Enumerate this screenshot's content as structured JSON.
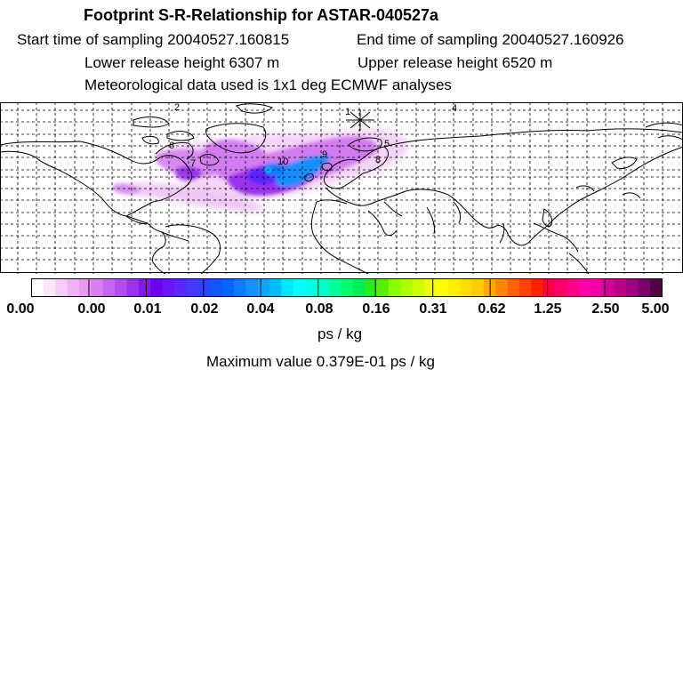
{
  "header": {
    "title": "Footprint S-R-Relationship for ASTAR-040527a",
    "start_time": "Start time of sampling 20040527.160815",
    "end_time": "End time of sampling 20040527.160926",
    "lower_height": "Lower release height 6307 m",
    "upper_height": "Upper release height 6520 m",
    "met_data": "Meteorological data used is 1x1 deg ECMWF analyses"
  },
  "map": {
    "labels": [
      "2",
      "1",
      "4",
      "5",
      "6",
      "7",
      "8",
      "9",
      "10"
    ],
    "receptor_marker": "asterisk"
  },
  "colorbar": {
    "ticks": [
      "0.00",
      "0.00",
      "0.01",
      "0.02",
      "0.04",
      "0.08",
      "0.16",
      "0.31",
      "0.62",
      "1.25",
      "2.50",
      "5.00"
    ],
    "unit": "ps / kg",
    "colors": [
      "#ffffff",
      "#fbe6fb",
      "#f5ccf8",
      "#efb3f5",
      "#e899f2",
      "#d97ff0",
      "#c566f0",
      "#b24cf0",
      "#9b33ee",
      "#8419ea",
      "#6e00ec",
      "#6a14ff",
      "#5a28ff",
      "#4638ff",
      "#2b45ff",
      "#1155ff",
      "#0066ff",
      "#0a7cff",
      "#1490ff",
      "#14a4ff",
      "#00bbff",
      "#00e6ff",
      "#00ffff",
      "#00ffe6",
      "#00ffcc",
      "#00ff9e",
      "#00ff70",
      "#00ee55",
      "#22ee22",
      "#55ee00",
      "#88ff00",
      "#aaff00",
      "#ccff00",
      "#eeff00",
      "#ffff00",
      "#ffee00",
      "#ffdd00",
      "#ffcc00",
      "#ffaa00",
      "#ff8800",
      "#ff6600",
      "#ff4400",
      "#ff2200",
      "#ff0044",
      "#ff0066",
      "#ff0088",
      "#ff00aa",
      "#ee00aa",
      "#d40096",
      "#bb0088",
      "#9e0080",
      "#7a006a",
      "#550044"
    ]
  },
  "max_value": "Maximum value  0.379E-01 ps / kg"
}
